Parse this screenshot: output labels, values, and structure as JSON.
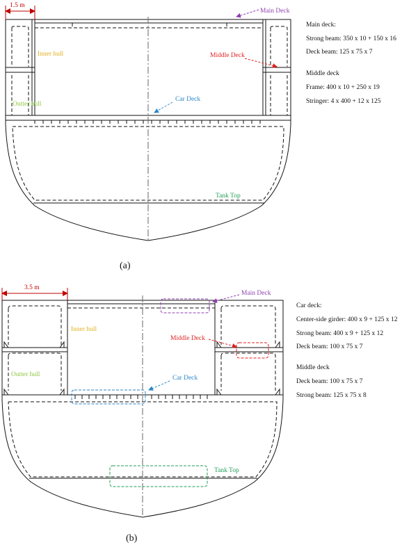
{
  "colors": {
    "main_deck": "#8e3fb0",
    "middle_deck": "#e02020",
    "car_deck": "#2a86c8",
    "tank_top": "#1f9d55",
    "inner_hull": "#e0b020",
    "outter_hull": "#8cc63f",
    "dimension": "#c00000",
    "line": "#111111"
  },
  "panel_a": {
    "caption": "(a)",
    "dimension": "1.5 m",
    "labels": {
      "main_deck": "Main Deck",
      "inner_hull": "Inner hull",
      "middle_deck": "Middle Deck",
      "outter_hull": "Outter hull",
      "car_deck": "Car Deck",
      "tank_top": "Tank Top"
    },
    "specs": [
      "Main deck:",
      "Strong beam: 350 x 10 + 150 x 16",
      "Deck beam: 125 x 75 x 7",
      "Middle deck",
      "Frame: 400 x 10 + 250 x 19",
      "Stringer: 4 x 400 + 12 x 125"
    ]
  },
  "panel_b": {
    "caption": "(b)",
    "dimension": "3.5 m",
    "labels": {
      "main_deck": "Main Deck",
      "inner_hull": "Inner hull",
      "middle_deck": "Middle Deck",
      "outter_hull": "Outter hull",
      "car_deck": "Car Deck",
      "tank_top": "Tank Top"
    },
    "specs": [
      "Car deck:",
      "Center-side girder: 400 x 9 + 125 x 12",
      "Strong beam: 400 x 9 + 125 x 12",
      "Deck beam: 100 x 75 x 7",
      "Middle deck",
      "Deck beam: 100 x 75 x 7",
      "Strong beam: 125 x 75 x 8"
    ]
  }
}
